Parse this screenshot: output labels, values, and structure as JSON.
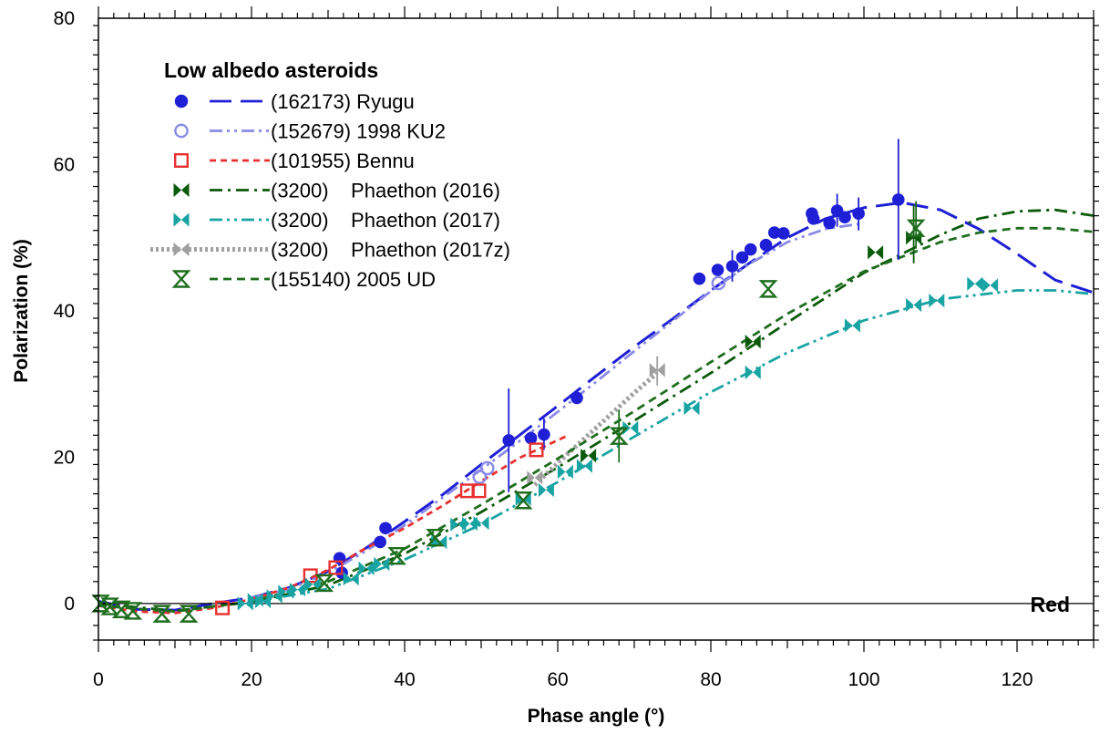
{
  "chart_data": {
    "type": "scatter",
    "title": "",
    "xlabel": "Phase angle (°)",
    "ylabel": "Polarization (%)",
    "xlim": [
      0,
      130
    ],
    "ylim": [
      -5,
      80
    ],
    "x_ticks": [
      0,
      20,
      40,
      60,
      80,
      100,
      120
    ],
    "y_ticks": [
      0,
      20,
      40,
      60,
      80
    ],
    "grid": false,
    "legend_title": "Low albedo asteroids",
    "legend_position": "top-left",
    "annotation": "Red",
    "series": [
      {
        "name": "(162173) Ryugu",
        "color": "#1f1fd6",
        "marker": "filled-circle",
        "line": "long-dash",
        "points": [
          [
            31.5,
            6.2
          ],
          [
            31.8,
            4.2
          ],
          [
            36.8,
            8.4
          ],
          [
            37.5,
            10.3
          ],
          [
            53.6,
            22.3
          ],
          [
            56.5,
            22.6
          ],
          [
            58.2,
            23.1
          ],
          [
            62.5,
            28.1
          ],
          [
            78.5,
            44.4
          ],
          [
            80.9,
            45.6
          ],
          [
            82.8,
            46.1
          ],
          [
            84.1,
            47.3
          ],
          [
            85.2,
            48.4
          ],
          [
            87.2,
            49.0
          ],
          [
            88.3,
            50.7
          ],
          [
            89.5,
            50.6
          ],
          [
            93.2,
            53.3
          ],
          [
            93.4,
            52.6
          ],
          [
            95.5,
            52.0
          ],
          [
            96.5,
            53.7
          ],
          [
            97.5,
            52.8
          ],
          [
            99.3,
            53.3
          ],
          [
            104.5,
            55.2
          ]
        ],
        "error_bars": [
          [
            53.6,
            15.2,
            29.4
          ],
          [
            58.2,
            21.0,
            25.3
          ],
          [
            104.5,
            47.0,
            63.5
          ],
          [
            96.5,
            51.5,
            56.0
          ],
          [
            99.3,
            51.0,
            55.5
          ],
          [
            82.8,
            44.0,
            48.3
          ]
        ],
        "fit": [
          [
            0,
            0.3
          ],
          [
            5,
            -0.8
          ],
          [
            10,
            -0.9
          ],
          [
            15,
            0.0
          ],
          [
            20,
            0.8
          ],
          [
            25,
            2.2
          ],
          [
            30,
            4.4
          ],
          [
            35,
            7.6
          ],
          [
            40,
            11.2
          ],
          [
            45,
            14.9
          ],
          [
            50,
            19.0
          ],
          [
            55,
            23.0
          ],
          [
            60,
            27.0
          ],
          [
            65,
            31.1
          ],
          [
            70,
            35.1
          ],
          [
            75,
            38.9
          ],
          [
            80,
            42.8
          ],
          [
            85,
            46.5
          ],
          [
            90,
            50.0
          ],
          [
            95,
            52.6
          ],
          [
            100,
            54.1
          ],
          [
            105,
            54.8
          ],
          [
            110,
            53.8
          ],
          [
            115,
            51.2
          ],
          [
            120,
            47.8
          ],
          [
            125,
            44.2
          ],
          [
            130,
            42.5
          ]
        ]
      },
      {
        "name": "(152679) 1998 KU2",
        "color": "#8a8ae8",
        "marker": "open-circle",
        "line": "dash-dot-dot",
        "points": [
          [
            49.8,
            17.3
          ],
          [
            50.8,
            18.5
          ],
          [
            81.0,
            43.8
          ]
        ],
        "error_bars": [],
        "fit": [
          [
            20,
            0.8
          ],
          [
            25,
            2.0
          ],
          [
            30,
            4.2
          ],
          [
            35,
            7.2
          ],
          [
            40,
            10.7
          ],
          [
            45,
            14.5
          ],
          [
            50,
            18.3
          ],
          [
            55,
            22.2
          ],
          [
            60,
            26.2
          ],
          [
            65,
            30.3
          ],
          [
            70,
            34.5
          ],
          [
            75,
            38.6
          ],
          [
            80,
            42.7
          ],
          [
            85,
            46.4
          ],
          [
            90,
            49.4
          ],
          [
            95,
            51.2
          ],
          [
            100,
            52.0
          ]
        ]
      },
      {
        "name": "(101955) Bennu",
        "color": "#e83030",
        "marker": "open-square",
        "line": "short-dash",
        "points": [
          [
            16.2,
            -0.6
          ],
          [
            27.7,
            3.8
          ],
          [
            31.0,
            4.9
          ],
          [
            48.2,
            15.4
          ],
          [
            49.7,
            15.4
          ],
          [
            57.2,
            21.0
          ]
        ],
        "error_bars": [],
        "fit": [
          [
            0,
            -0.3
          ],
          [
            5,
            -1.1
          ],
          [
            10,
            -1.3
          ],
          [
            15,
            -0.6
          ],
          [
            20,
            0.6
          ],
          [
            25,
            2.2
          ],
          [
            30,
            4.6
          ],
          [
            35,
            7.6
          ],
          [
            40,
            10.3
          ],
          [
            45,
            13.4
          ],
          [
            50,
            16.7
          ],
          [
            55,
            19.9
          ],
          [
            61,
            22.8
          ]
        ]
      },
      {
        "name": "(3200)    Phaethon (2016)",
        "color": "#0b5a0b",
        "marker": "bowtie-horizontal",
        "line": "dash-dot",
        "points": [
          [
            64.0,
            20.2
          ],
          [
            85.5,
            35.8
          ],
          [
            101.5,
            48.0
          ],
          [
            106.5,
            50.0
          ]
        ],
        "error_bars": [
          [
            106.5,
            46.5,
            54.5
          ]
        ],
        "fit": [
          [
            0,
            0.0
          ],
          [
            10,
            -1.0
          ],
          [
            20,
            0.2
          ],
          [
            30,
            2.5
          ],
          [
            40,
            6.8
          ],
          [
            50,
            12.5
          ],
          [
            60,
            18.6
          ],
          [
            70,
            25.0
          ],
          [
            80,
            31.5
          ],
          [
            90,
            38.4
          ],
          [
            100,
            45.2
          ],
          [
            110,
            50.4
          ],
          [
            115,
            52.6
          ],
          [
            120,
            53.6
          ],
          [
            125,
            53.8
          ],
          [
            130,
            53.0
          ]
        ]
      },
      {
        "name": "(3200)    Phaethon (2017)",
        "color": "#1aa3a3",
        "marker": "bowtie-horizontal",
        "line": "dash-dot-dot",
        "points": [
          [
            19.2,
            0.0
          ],
          [
            20.5,
            0.5
          ],
          [
            21.5,
            0.3
          ],
          [
            23.0,
            1.0
          ],
          [
            24.5,
            1.6
          ],
          [
            26.0,
            1.9
          ],
          [
            28.0,
            2.6
          ],
          [
            33.0,
            3.4
          ],
          [
            35.0,
            4.8
          ],
          [
            37.0,
            5.4
          ],
          [
            44.5,
            8.4
          ],
          [
            47.0,
            10.8
          ],
          [
            48.5,
            10.9
          ],
          [
            50.0,
            11.0
          ],
          [
            55.5,
            14.3
          ],
          [
            58.5,
            15.5
          ],
          [
            61.0,
            18.0
          ],
          [
            63.5,
            18.8
          ],
          [
            69.5,
            24.0
          ],
          [
            77.5,
            26.7
          ],
          [
            85.5,
            31.6
          ],
          [
            98.5,
            38.0
          ],
          [
            106.5,
            40.8
          ],
          [
            109.5,
            41.4
          ],
          [
            114.5,
            43.7
          ],
          [
            116.5,
            43.5
          ]
        ],
        "error_bars": [],
        "fit": [
          [
            20,
            0.2
          ],
          [
            30,
            2.0
          ],
          [
            40,
            6.0
          ],
          [
            50,
            10.8
          ],
          [
            60,
            16.6
          ],
          [
            70,
            22.8
          ],
          [
            80,
            28.9
          ],
          [
            90,
            34.3
          ],
          [
            100,
            38.7
          ],
          [
            110,
            41.6
          ],
          [
            120,
            42.8
          ],
          [
            125,
            42.8
          ],
          [
            130,
            42.3
          ]
        ]
      },
      {
        "name": "(3200)    Phaethon (2017z)",
        "color": "#a0a0a0",
        "marker": "bowtie-horizontal",
        "line": "dotted-thick",
        "points": [
          [
            57.0,
            17.2
          ],
          [
            73.0,
            31.9
          ]
        ],
        "error_bars": [
          [
            73.0,
            29.8,
            33.8
          ]
        ],
        "fit": [
          [
            57,
            16.2
          ],
          [
            60,
            19.2
          ],
          [
            65,
            24.0
          ],
          [
            70,
            28.8
          ],
          [
            73,
            31.5
          ]
        ]
      },
      {
        "name": "(155140) 2005 UD",
        "color": "#1e6e1e",
        "marker": "hourglass",
        "line": "dash",
        "points": [
          [
            0.3,
            0.0
          ],
          [
            1.5,
            -0.4
          ],
          [
            3.0,
            -0.8
          ],
          [
            4.5,
            -1.0
          ],
          [
            8.3,
            -1.4
          ],
          [
            11.8,
            -1.4
          ],
          [
            29.5,
            2.8
          ],
          [
            39.0,
            6.5
          ],
          [
            44.0,
            9.0
          ],
          [
            55.5,
            14.1
          ],
          [
            68.0,
            22.9
          ],
          [
            87.5,
            43.0
          ],
          [
            106.8,
            51.3
          ]
        ],
        "error_bars": [
          [
            68.0,
            19.3,
            26.5
          ],
          [
            106.8,
            48.5,
            55.0
          ]
        ],
        "fit": [
          [
            0,
            -0.3
          ],
          [
            10,
            -1.1
          ],
          [
            20,
            0.3
          ],
          [
            30,
            3.0
          ],
          [
            40,
            7.5
          ],
          [
            50,
            13.5
          ],
          [
            60,
            19.8
          ],
          [
            70,
            26.3
          ],
          [
            80,
            33.0
          ],
          [
            90,
            39.6
          ],
          [
            100,
            45.4
          ],
          [
            110,
            49.4
          ],
          [
            115,
            50.7
          ],
          [
            120,
            51.3
          ],
          [
            125,
            51.3
          ],
          [
            130,
            50.8
          ]
        ]
      }
    ]
  }
}
